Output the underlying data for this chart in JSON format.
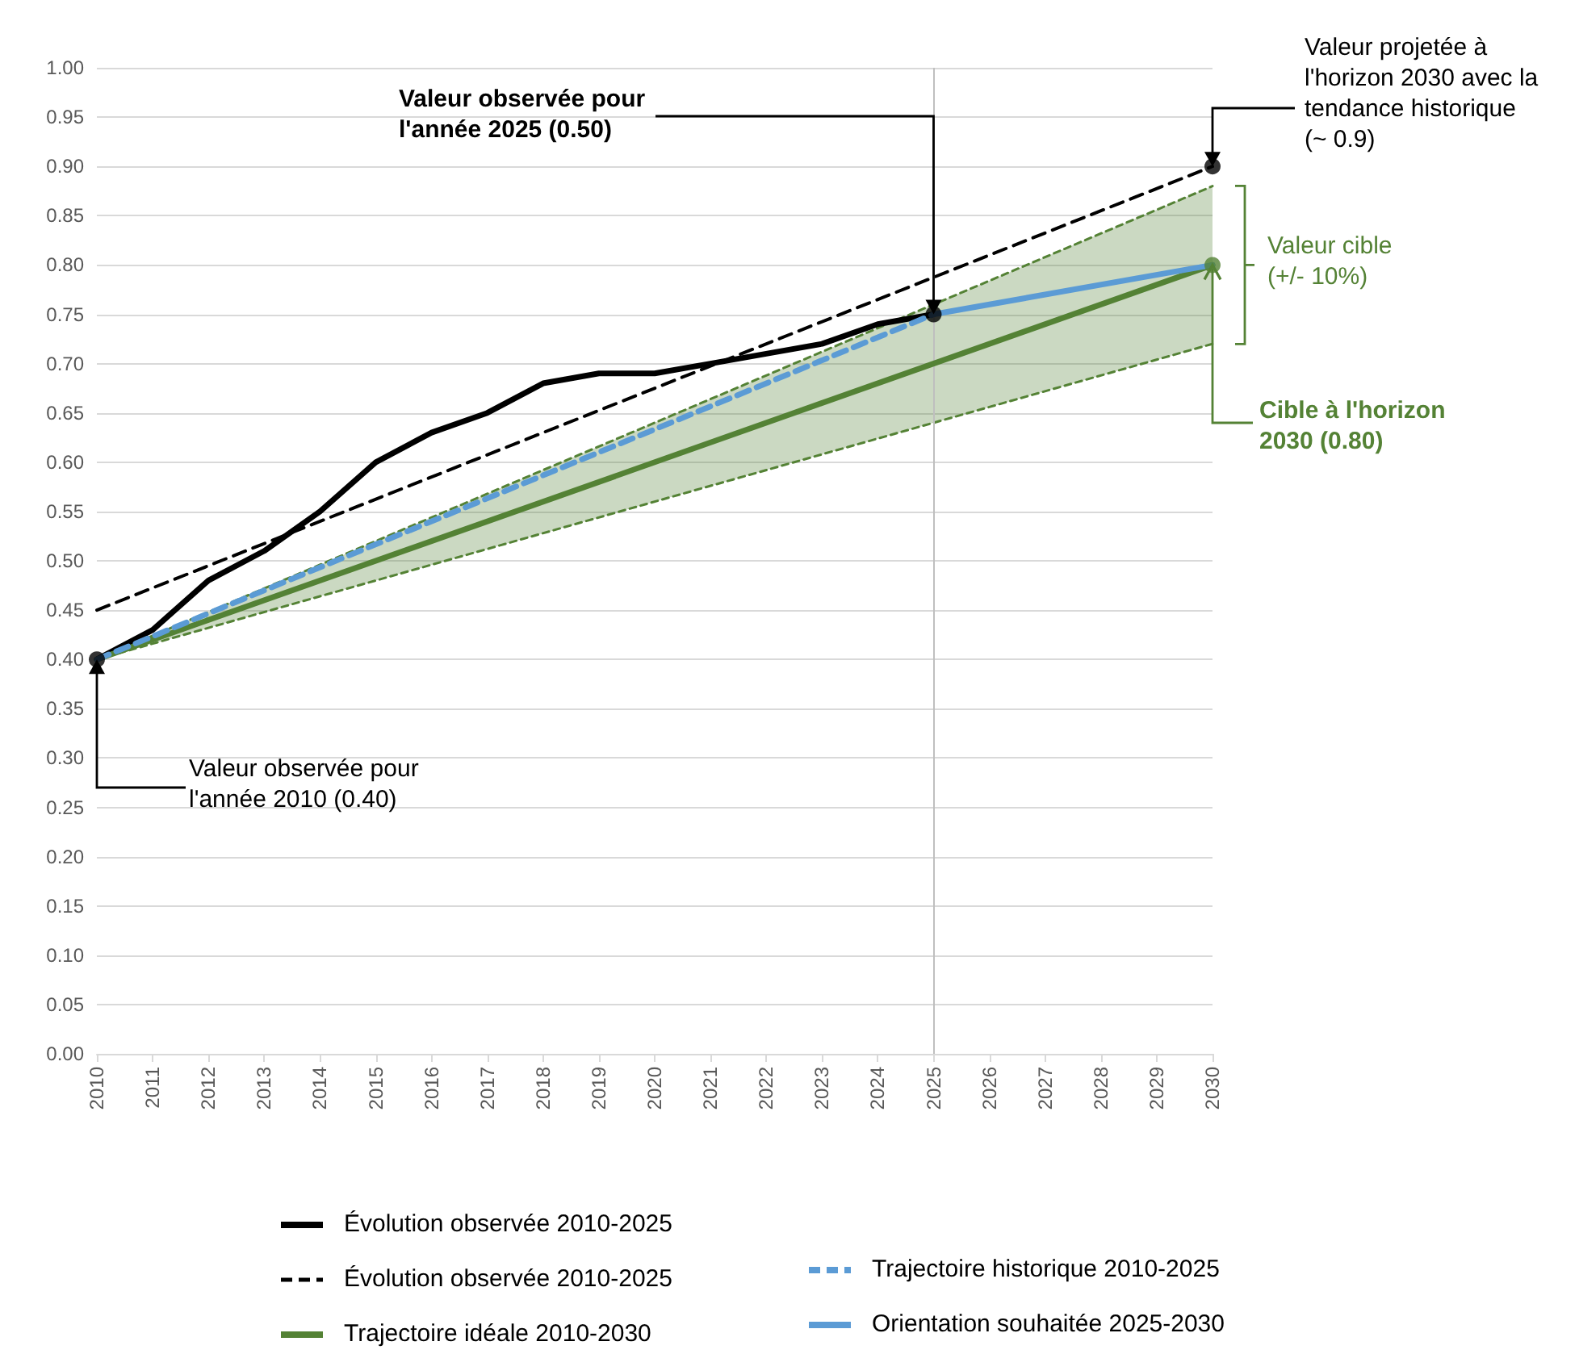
{
  "chart_data": {
    "type": "line",
    "x": [
      2010,
      2011,
      2012,
      2013,
      2014,
      2015,
      2016,
      2017,
      2018,
      2019,
      2020,
      2021,
      2022,
      2023,
      2024,
      2025
    ],
    "series": [
      {
        "name": "Évolution observée 2010-2025",
        "color": "#000000",
        "values": [
          0.4,
          0.43,
          0.48,
          0.51,
          0.55,
          0.6,
          0.63,
          0.65,
          0.68,
          0.69,
          0.69,
          0.7,
          0.71,
          0.72,
          0.74,
          0.75
        ]
      },
      {
        "name": "Évolution observée 2010-2025",
        "color": "#000000",
        "line_style": "dashed",
        "x": [
          2010,
          2030
        ],
        "values": [
          0.45,
          0.9
        ]
      },
      {
        "name": "Trajectoire idéale 2010-2030",
        "color": "#548235",
        "x": [
          2010,
          2030
        ],
        "values": [
          0.4,
          0.8
        ],
        "lower": [
          0.4,
          0.72
        ],
        "upper": [
          0.4,
          0.88
        ]
      },
      {
        "name": "Trajectoire historique 2010-2025",
        "color": "#5b9bd5",
        "line_style": "dashed",
        "x": [
          2010,
          2025
        ],
        "values": [
          0.4,
          0.75
        ]
      },
      {
        "name": "Orientation souhaitée 2025-2030",
        "color": "#5b9bd5",
        "x": [
          2025,
          2030
        ],
        "values": [
          0.75,
          0.8
        ]
      },
      {
        "type": "scatter",
        "color": "#000000",
        "marker": "circle",
        "x": [
          2010,
          2025,
          2030
        ],
        "values": [
          0.4,
          0.75,
          0.9
        ]
      },
      {
        "type": "scatter",
        "color": "#548235",
        "marker": "circle",
        "x": [
          2030
        ],
        "values": [
          0.8
        ]
      },
      {
        "color": "#548235",
        "line_style": "dashed",
        "x": [
          2010,
          2030
        ],
        "values": [
          0.4,
          0.88
        ]
      },
      {
        "color": "#548235",
        "line_style": "dashed",
        "x": [
          2010,
          2030
        ],
        "values": [
          0.4,
          0.72
        ]
      }
    ],
    "xlim": [
      2010,
      2030
    ],
    "xticks": [
      2010,
      2011,
      2012,
      2013,
      2014,
      2015,
      2016,
      2017,
      2018,
      2019,
      2020,
      2021,
      2022,
      2023,
      2024,
      2025,
      2026,
      2027,
      2028,
      2029,
      2030
    ],
    "ylim": [
      0,
      1
    ],
    "yticks": [
      {
        "value": 0,
        "label": "0.00"
      },
      {
        "value": 0.05,
        "label": "0.05"
      },
      {
        "value": 0.1,
        "label": "0.10"
      },
      {
        "value": 0.15,
        "label": "0.15"
      },
      {
        "value": 0.2,
        "label": "0.20"
      },
      {
        "value": 0.25,
        "label": "0.25"
      },
      {
        "value": 0.3,
        "label": "0.30"
      },
      {
        "value": 0.35,
        "label": "0.35"
      },
      {
        "value": 0.4,
        "label": "0.40"
      },
      {
        "value": 0.45,
        "label": "0.45"
      },
      {
        "value": 0.5,
        "label": "0.50"
      },
      {
        "value": 0.55,
        "label": "0.55"
      },
      {
        "value": 0.6,
        "label": "0.60"
      },
      {
        "value": 0.65,
        "label": "0.65"
      },
      {
        "value": 0.7,
        "label": "0.70"
      },
      {
        "value": 0.75,
        "label": "0.75"
      },
      {
        "value": 0.8,
        "label": "0.80"
      },
      {
        "value": 0.85,
        "label": "0.85"
      },
      {
        "value": 0.9,
        "label": "0.90"
      },
      {
        "value": 0.95,
        "label": "0.95"
      },
      {
        "value": 1,
        "label": "1.00"
      }
    ],
    "grid": "y",
    "legend": "bottom",
    "ref_lines": [
      {
        "axis": "x",
        "value": 2025,
        "color": "#bfbfbf"
      }
    ],
    "annotations": [
      {
        "text": "Valeur observée pour l'année 2025 (0.50)",
        "x": 2025,
        "y": 0.75
      },
      {
        "text": "Valeur projetée à l'horizon 2030 avec la tendance historique (~ 0.9)",
        "x": 2030,
        "y": 0.9
      },
      {
        "text": "Valeur cible (+/- 10%)",
        "x": 2030,
        "y": 0.8
      },
      {
        "text": "Cible à l'horizon 2030 (0.80)",
        "x": 2030,
        "y": 0.8
      },
      {
        "text": "Valeur observée pour l'année 2010 (0.40)",
        "x": 2010,
        "y": 0.4
      }
    ]
  }
}
